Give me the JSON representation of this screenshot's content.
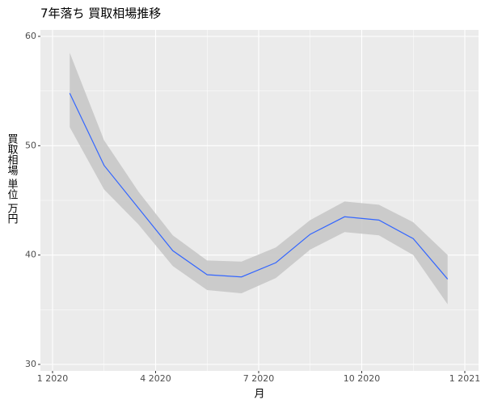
{
  "chart_data": {
    "type": "line",
    "title": "7年落ち 買取相場推移",
    "xlabel": "月",
    "ylabel": "買取相場 単位 万円",
    "x": [
      "2020-01",
      "2020-02",
      "2020-03",
      "2020-04",
      "2020-05",
      "2020-06",
      "2020-07",
      "2020-08",
      "2020-09",
      "2020-10",
      "2020-11",
      "2020-12"
    ],
    "values": [
      54.8,
      48.2,
      44.3,
      40.4,
      38.2,
      38.0,
      39.3,
      41.9,
      43.5,
      43.2,
      41.5,
      37.8
    ],
    "upper": [
      58.5,
      50.5,
      45.8,
      41.8,
      39.5,
      39.4,
      40.7,
      43.2,
      44.9,
      44.6,
      43.0,
      40.0
    ],
    "lower": [
      51.7,
      46.0,
      42.8,
      39.0,
      36.8,
      36.5,
      37.9,
      40.5,
      42.1,
      41.8,
      40.0,
      35.5
    ],
    "color": "#3366ff",
    "band_color": "#c8c8c8",
    "xlim": [
      "2020-01",
      "2021-01"
    ],
    "xticks": [
      {
        "value": "2020-01",
        "label": "1 2020"
      },
      {
        "value": "2020-04",
        "label": "4 2020"
      },
      {
        "value": "2020-07",
        "label": "7 2020"
      },
      {
        "value": "2020-10",
        "label": "10 2020"
      },
      {
        "value": "2021-01",
        "label": "1 2021"
      }
    ],
    "ylim": [
      30,
      60
    ],
    "yticks": [
      30,
      40,
      50,
      60
    ],
    "grid": true
  }
}
